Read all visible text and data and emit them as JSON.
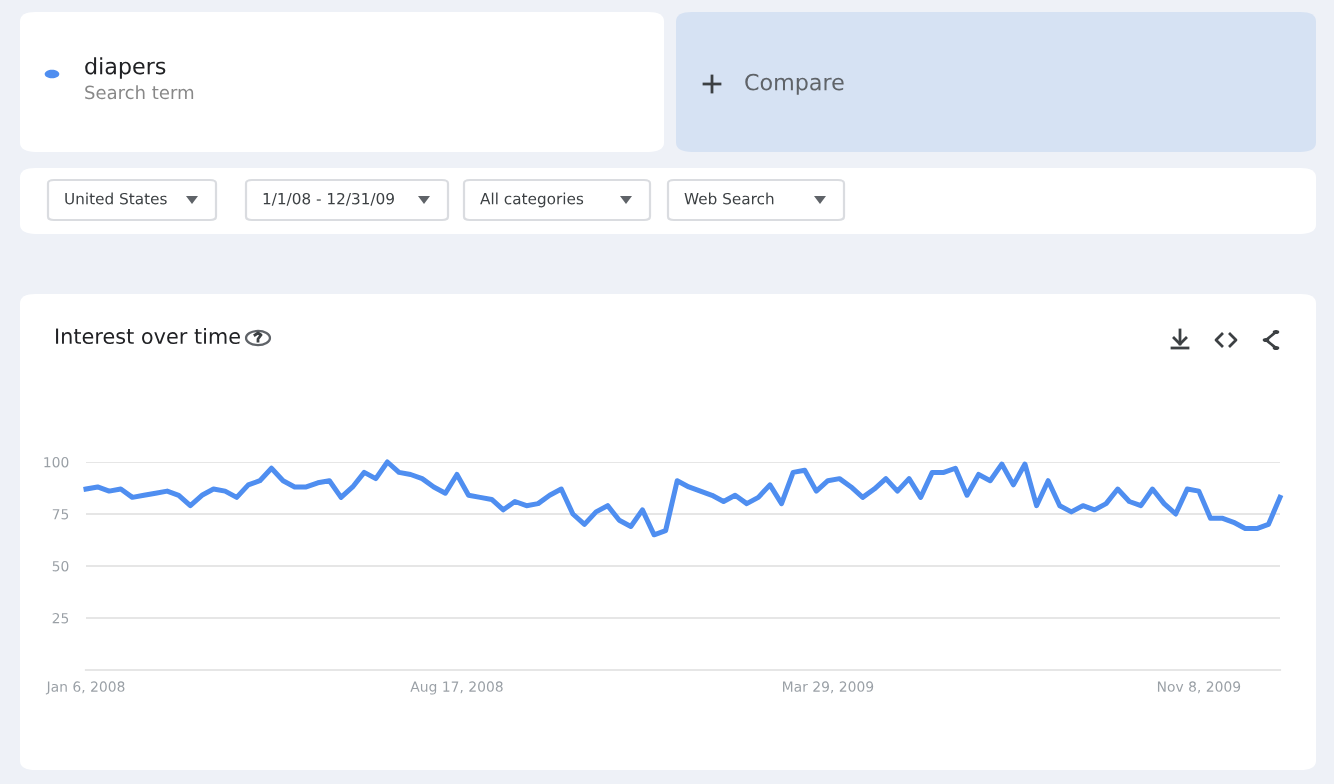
{
  "chart_data": {
    "type": "line",
    "title": "Interest over time",
    "annotations": [
      "Search term",
      "Compare",
      "United States",
      "1/1/08 - 12/31/09",
      "All categories",
      "Web Search"
    ],
    "legend": "top",
    "x": [
      "2008-01-06",
      "2008-01-13",
      "2008-01-20",
      "2008-01-27",
      "2008-02-03",
      "2008-02-10",
      "2008-02-17",
      "2008-02-24",
      "2008-03-02",
      "2008-03-09",
      "2008-03-16",
      "2008-03-23",
      "2008-03-30",
      "2008-04-06",
      "2008-04-13",
      "2008-04-20",
      "2008-04-27",
      "2008-05-04",
      "2008-05-11",
      "2008-05-18",
      "2008-05-25",
      "2008-06-01",
      "2008-06-08",
      "2008-06-15",
      "2008-06-22",
      "2008-06-29",
      "2008-07-06",
      "2008-07-13",
      "2008-07-20",
      "2008-07-27",
      "2008-08-03",
      "2008-08-10",
      "2008-08-17",
      "2008-08-24",
      "2008-08-31",
      "2008-09-07",
      "2008-09-14",
      "2008-09-21",
      "2008-09-28",
      "2008-10-05",
      "2008-10-12",
      "2008-10-19",
      "2008-10-26",
      "2008-11-02",
      "2008-11-09",
      "2008-11-16",
      "2008-11-23",
      "2008-11-30",
      "2008-12-07",
      "2008-12-14",
      "2008-12-21",
      "2008-12-28",
      "2009-01-04",
      "2009-01-11",
      "2009-01-18",
      "2009-01-25",
      "2009-02-01",
      "2009-02-08",
      "2009-02-15",
      "2009-02-22",
      "2009-03-01",
      "2009-03-08",
      "2009-03-15",
      "2009-03-22",
      "2009-03-29",
      "2009-04-05",
      "2009-04-12",
      "2009-04-19",
      "2009-04-26",
      "2009-05-03",
      "2009-05-10",
      "2009-05-17",
      "2009-05-24",
      "2009-05-31",
      "2009-06-07",
      "2009-06-14",
      "2009-06-21",
      "2009-06-28",
      "2009-07-05",
      "2009-07-12",
      "2009-07-19",
      "2009-07-26",
      "2009-08-02",
      "2009-08-09",
      "2009-08-16",
      "2009-08-23",
      "2009-08-30",
      "2009-09-06",
      "2009-09-13",
      "2009-09-20",
      "2009-09-27",
      "2009-10-04",
      "2009-10-11",
      "2009-10-18",
      "2009-10-25",
      "2009-11-01",
      "2009-11-08",
      "2009-11-15",
      "2009-11-22",
      "2009-11-29",
      "2009-12-06",
      "2009-12-13",
      "2009-12-20",
      "2009-12-27"
    ],
    "series": [
      {
        "name": "diapers",
        "color": "#4f8ef0",
        "values": [
          87,
          88,
          86,
          87,
          83,
          84,
          85,
          86,
          84,
          79,
          84,
          87,
          86,
          83,
          89,
          91,
          97,
          91,
          88,
          88,
          90,
          91,
          83,
          88,
          95,
          92,
          100,
          95,
          94,
          92,
          88,
          85,
          94,
          84,
          83,
          82,
          77,
          81,
          79,
          80,
          84,
          87,
          75,
          70,
          76,
          79,
          72,
          69,
          77,
          65,
          67,
          91,
          88,
          86,
          84,
          81,
          84,
          80,
          83,
          89,
          80,
          95,
          96,
          86,
          91,
          92,
          88,
          83,
          87,
          92,
          86,
          92,
          83,
          95,
          95,
          97,
          84,
          94,
          91,
          99,
          89,
          99,
          79,
          91,
          79,
          76,
          79,
          77,
          80,
          87,
          81,
          79,
          87,
          80,
          75,
          87,
          86,
          73,
          73,
          71,
          68,
          68,
          70,
          83
        ]
      }
    ],
    "xlim": [
      "2008-01-06",
      "2009-12-27"
    ],
    "xticks": [
      {
        "value": "2008-01-06",
        "label": "Jan 6, 2008"
      },
      {
        "value": "2008-08-17",
        "label": "Aug 17, 2008"
      },
      {
        "value": "2009-03-29",
        "label": "Mar 29, 2009"
      },
      {
        "value": "2009-11-08",
        "label": "Nov 8, 2009"
      }
    ],
    "ylim": [
      0,
      100
    ],
    "yticks": [
      25,
      50,
      75,
      100
    ],
    "grid": "y",
    "marker": "none",
    "line_style": "solid"
  }
}
